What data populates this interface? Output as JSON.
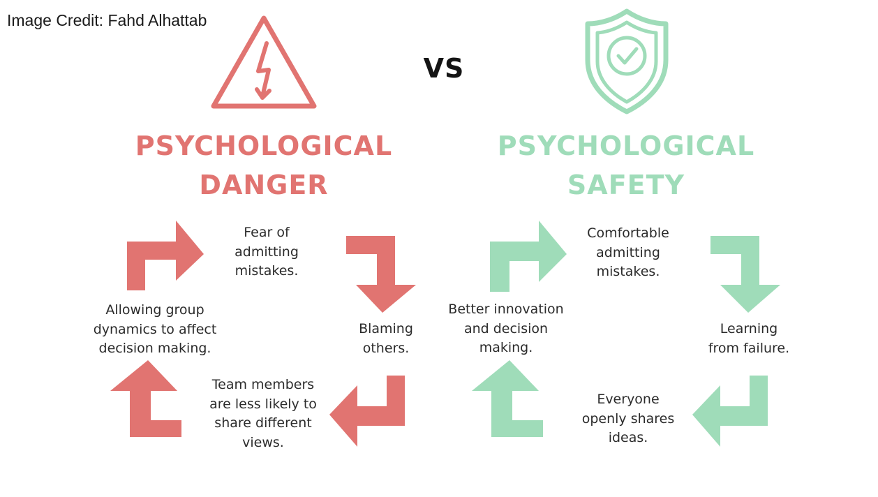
{
  "image_credit": "Image Credit: Fahd Alhattab",
  "vs_label": "VS",
  "colors": {
    "danger": "#e17471",
    "safety": "#9fdcb9",
    "text": "#2b2b2b"
  },
  "danger": {
    "icon": "warning-lightning-triangle-icon",
    "title_line1": "PSYCHOLOGICAL",
    "title_line2": "DANGER",
    "cycle": {
      "top": "Fear of\nadmitting\nmistakes.",
      "right": "Blaming\nothers.",
      "bottom": "Team members\nare less likely to\nshare different\nviews.",
      "left": "Allowing group\ndynamics to affect\ndecision making."
    }
  },
  "safety": {
    "icon": "shield-check-icon",
    "title_line1": "PSYCHOLOGICAL",
    "title_line2": "SAFETY",
    "cycle": {
      "top": "Comfortable\nadmitting\nmistakes.",
      "right": "Learning\nfrom failure.",
      "bottom": "Everyone\nopenly shares\nideas.",
      "left": "Better innovation\nand decision\nmaking."
    }
  }
}
